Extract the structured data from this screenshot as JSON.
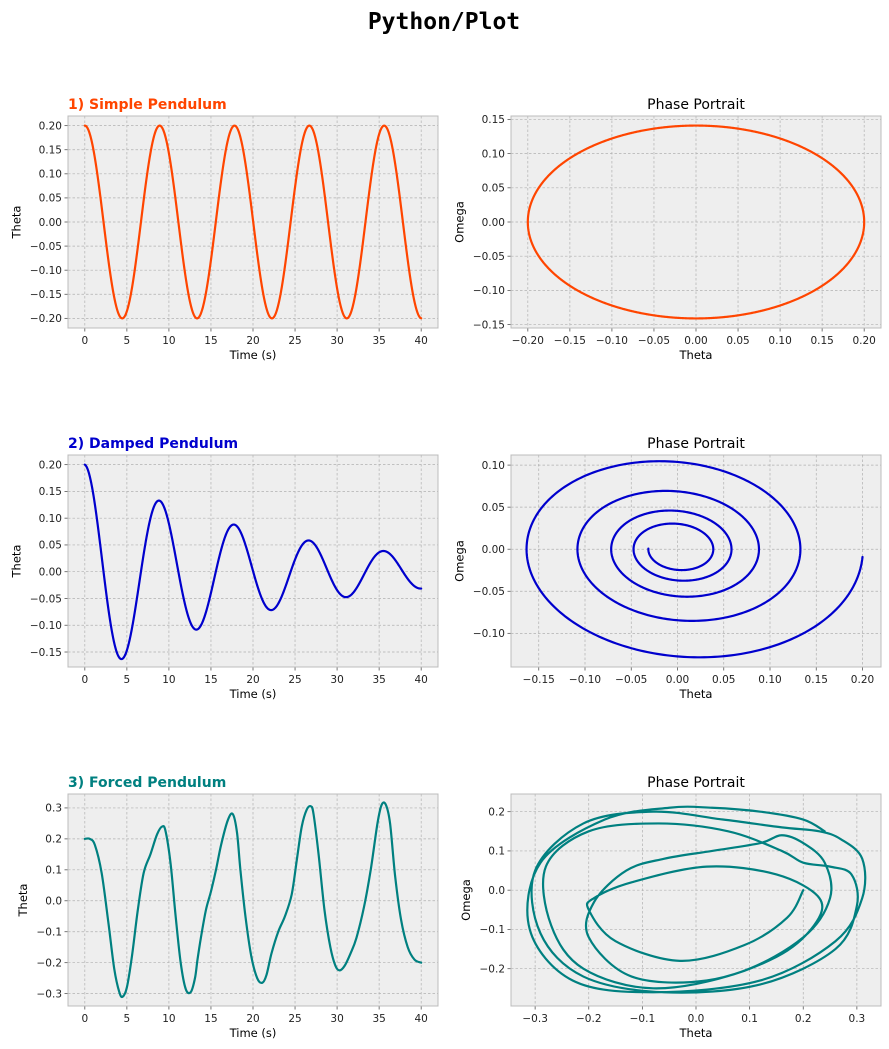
{
  "figure": {
    "title": "Python/Plot",
    "background": "#ffffff",
    "axes_background": "#eeeeee",
    "grid_color": "#b0b0b0",
    "spine_color": "#bcbcbc"
  },
  "chart_data": [
    {
      "id": "simple-time",
      "type": "line",
      "title": "1) Simple Pendulum",
      "title_align": "left",
      "title_bold": true,
      "title_color": "#ff4500",
      "xlabel": "Time (s)",
      "ylabel": "Theta",
      "xlim": [
        -2,
        42
      ],
      "ylim": [
        -0.22,
        0.22
      ],
      "xticks": [
        0,
        5,
        10,
        15,
        20,
        25,
        30,
        35,
        40
      ],
      "yticks": [
        -0.2,
        -0.15,
        -0.1,
        -0.05,
        0.0,
        0.05,
        0.1,
        0.15,
        0.2
      ],
      "ytick_decimals": 2,
      "grid": true,
      "series": [
        {
          "color": "#ff4500",
          "model": "simple",
          "amplitude": 0.2,
          "period": 8.9,
          "t_range": [
            0,
            40
          ]
        }
      ]
    },
    {
      "id": "simple-phase",
      "type": "line",
      "title": "Phase Portrait",
      "title_align": "center",
      "title_bold": false,
      "title_color": "#000000",
      "xlabel": "Theta",
      "ylabel": "Omega",
      "xlim": [
        -0.22,
        0.22
      ],
      "ylim": [
        -0.155,
        0.155
      ],
      "xticks": [
        -0.2,
        -0.15,
        -0.1,
        -0.05,
        0.0,
        0.05,
        0.1,
        0.15,
        0.2
      ],
      "yticks": [
        -0.15,
        -0.1,
        -0.05,
        0.0,
        0.05,
        0.1,
        0.15
      ],
      "xtick_decimals": 2,
      "ytick_decimals": 2,
      "grid": true,
      "series": [
        {
          "color": "#ff4500",
          "model": "simple-phase",
          "theta_amplitude": 0.2,
          "omega_amplitude": 0.141
        }
      ]
    },
    {
      "id": "damped-time",
      "type": "line",
      "title": "2) Damped Pendulum",
      "title_align": "left",
      "title_bold": true,
      "title_color": "#0000cd",
      "xlabel": "Time (s)",
      "ylabel": "Theta",
      "xlim": [
        -2,
        42
      ],
      "ylim": [
        -0.178,
        0.218
      ],
      "xticks": [
        0,
        5,
        10,
        15,
        20,
        25,
        30,
        35,
        40
      ],
      "yticks": [
        -0.15,
        -0.1,
        -0.05,
        0.0,
        0.05,
        0.1,
        0.15,
        0.2
      ],
      "ytick_decimals": 2,
      "grid": true,
      "series": [
        {
          "color": "#0000cd",
          "model": "damped",
          "amplitude": 0.2,
          "period": 8.9,
          "decay": 0.0462,
          "t_range": [
            0,
            40
          ]
        }
      ]
    },
    {
      "id": "damped-phase",
      "type": "line",
      "title": "Phase Portrait",
      "title_align": "center",
      "title_bold": false,
      "title_color": "#000000",
      "xlabel": "Theta",
      "ylabel": "Omega",
      "xlim": [
        -0.18,
        0.22
      ],
      "ylim": [
        -0.14,
        0.112
      ],
      "xticks": [
        -0.15,
        -0.1,
        -0.05,
        0.0,
        0.05,
        0.1,
        0.15,
        0.2
      ],
      "yticks": [
        -0.1,
        -0.05,
        0.0,
        0.05,
        0.1
      ],
      "xtick_decimals": 2,
      "ytick_decimals": 2,
      "grid": true,
      "series": [
        {
          "color": "#0000cd",
          "model": "damped-phase",
          "amplitude": 0.2,
          "period": 8.9,
          "decay": 0.0462,
          "t_range": [
            0,
            40
          ]
        }
      ]
    },
    {
      "id": "forced-time",
      "type": "line",
      "title": "3) Forced Pendulum",
      "title_align": "left",
      "title_bold": true,
      "title_color": "#008080",
      "xlabel": "Time (s)",
      "ylabel": "Theta",
      "xlim": [
        -2,
        42
      ],
      "ylim": [
        -0.34,
        0.345
      ],
      "xticks": [
        0,
        5,
        10,
        15,
        20,
        25,
        30,
        35,
        40
      ],
      "yticks": [
        -0.3,
        -0.2,
        -0.1,
        0.0,
        0.1,
        0.2,
        0.3
      ],
      "ytick_decimals": 1,
      "grid": true,
      "series": [
        {
          "color": "#008080",
          "model": "points",
          "x": [
            0,
            0.6,
            1.2,
            2,
            2.8,
            3.5,
            4.1,
            4.5,
            5,
            5.6,
            6.3,
            7,
            7.8,
            8.6,
            9.2,
            9.6,
            10.2,
            10.8,
            11.4,
            12,
            12.6,
            13.1,
            13.4,
            13.8,
            14.4,
            15,
            15.6,
            16.2,
            17,
            17.6,
            18.1,
            18.5,
            19.1,
            19.8,
            20.5,
            21.1,
            21.6,
            22.2,
            23,
            23.8,
            24.6,
            25.2,
            25.8,
            26.4,
            26.9,
            27.2,
            27.8,
            28.5,
            29.2,
            29.8,
            30.3,
            30.9,
            31.6,
            32.3,
            33.2,
            34,
            34.8,
            35.3,
            35.8,
            36.3,
            36.9,
            37.6,
            38.4,
            39.2,
            40
          ],
          "y": [
            0.2,
            0.2,
            0.18,
            0.09,
            -0.07,
            -0.22,
            -0.295,
            -0.31,
            -0.28,
            -0.18,
            -0.03,
            0.09,
            0.15,
            0.215,
            0.24,
            0.225,
            0.12,
            -0.05,
            -0.2,
            -0.285,
            -0.295,
            -0.25,
            -0.19,
            -0.12,
            -0.03,
            0.03,
            0.1,
            0.18,
            0.26,
            0.28,
            0.22,
            0.1,
            -0.05,
            -0.18,
            -0.25,
            -0.265,
            -0.24,
            -0.17,
            -0.1,
            -0.05,
            0.02,
            0.13,
            0.24,
            0.295,
            0.305,
            0.28,
            0.15,
            -0.03,
            -0.15,
            -0.21,
            -0.225,
            -0.21,
            -0.17,
            -0.12,
            -0.02,
            0.1,
            0.25,
            0.31,
            0.31,
            0.25,
            0.08,
            -0.06,
            -0.15,
            -0.19,
            -0.2
          ]
        }
      ]
    },
    {
      "id": "forced-phase",
      "type": "line",
      "title": "Phase Portrait",
      "title_align": "center",
      "title_bold": false,
      "title_color": "#000000",
      "xlabel": "Theta",
      "ylabel": "Omega",
      "xlim": [
        -0.345,
        0.345
      ],
      "ylim": [
        -0.295,
        0.245
      ],
      "xticks": [
        -0.3,
        -0.2,
        -0.1,
        0.0,
        0.1,
        0.2,
        0.3
      ],
      "yticks": [
        -0.2,
        -0.1,
        0.0,
        0.1,
        0.2
      ],
      "xtick_decimals": 1,
      "ytick_decimals": 1,
      "grid": true,
      "series": [
        {
          "color": "#008080",
          "model": "points",
          "x": [
            0.2,
            0.17,
            0.09,
            -0.03,
            -0.15,
            -0.2,
            -0.19,
            -0.12,
            0.02,
            0.15,
            0.23,
            0.22,
            0.15,
            0.02,
            -0.12,
            -0.2,
            -0.19,
            -0.13,
            -0.06,
            0.03,
            0.12,
            0.16,
            0.2,
            0.24,
            0.25,
            0.2,
            0.08,
            -0.08,
            -0.21,
            -0.27,
            -0.28,
            -0.2,
            -0.07,
            0.06,
            0.16,
            0.2,
            0.25,
            0.29,
            0.3,
            0.26,
            0.12,
            -0.06,
            -0.21,
            -0.29,
            -0.3,
            -0.21,
            -0.08,
            0.05,
            0.16,
            0.23,
            0.27,
            0.31,
            0.31,
            0.26,
            0.12,
            -0.08,
            -0.23,
            -0.31,
            -0.29,
            -0.17,
            -0.05,
            0.03,
            0.12,
            0.2,
            0.24
          ],
          "y": [
            0.0,
            -0.07,
            -0.14,
            -0.18,
            -0.13,
            -0.05,
            -0.02,
            0.02,
            0.06,
            0.04,
            -0.02,
            -0.09,
            -0.17,
            -0.23,
            -0.22,
            -0.12,
            -0.03,
            0.05,
            0.08,
            0.1,
            0.12,
            0.14,
            0.12,
            0.07,
            -0.02,
            -0.12,
            -0.21,
            -0.25,
            -0.2,
            -0.09,
            0.06,
            0.15,
            0.17,
            0.15,
            0.1,
            0.07,
            0.06,
            0.04,
            -0.04,
            -0.15,
            -0.24,
            -0.26,
            -0.22,
            -0.11,
            0.05,
            0.17,
            0.2,
            0.18,
            0.16,
            0.15,
            0.13,
            0.08,
            -0.02,
            -0.13,
            -0.23,
            -0.26,
            -0.23,
            -0.1,
            0.07,
            0.18,
            0.21,
            0.21,
            0.2,
            0.18,
            0.15
          ]
        }
      ]
    }
  ]
}
